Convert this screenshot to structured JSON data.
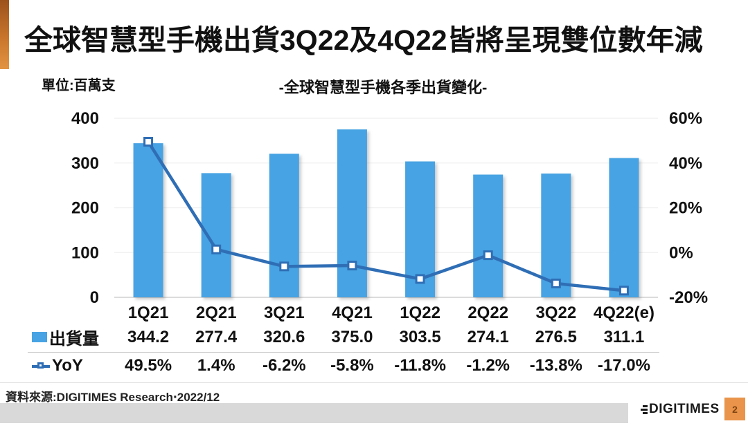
{
  "page": {
    "title": "全球智慧型手機出貨3Q22及4Q22皆將呈現雙位數年減",
    "page_number": "2"
  },
  "footer": {
    "source": "資料來源:DIGITIMES Research‧2022/12",
    "logo_text": "DIGITIMES"
  },
  "colors": {
    "bar": "#47a3e3",
    "line": "#2f6eb5",
    "accent_top": "#9c521c",
    "accent_bottom": "#e29440",
    "footer_bar": "#d9d9d9",
    "page_box_bg": "#e9944a",
    "page_box_text": "#7e4413",
    "gridline": "#efefef",
    "axis_line": "#cfcfcf"
  },
  "chart_data": {
    "type": "bar",
    "subtype": "bar+line combo, dual axis",
    "title": "-全球智慧型手機各季出貨變化-",
    "unit_label": "單位:百萬支",
    "categories": [
      "1Q21",
      "2Q21",
      "3Q21",
      "4Q21",
      "1Q22",
      "2Q22",
      "3Q22",
      "4Q22(e)"
    ],
    "series": [
      {
        "name": "出貨量",
        "type": "bar",
        "axis": "left",
        "color": "#47a3e3",
        "values": [
          344.2,
          277.4,
          320.6,
          375.0,
          303.5,
          274.1,
          276.5,
          311.1
        ]
      },
      {
        "name": "YoY",
        "type": "line",
        "axis": "right",
        "color": "#2f6eb5",
        "values": [
          49.5,
          1.4,
          -6.2,
          -5.8,
          -11.8,
          -1.2,
          -13.8,
          -17.0
        ]
      }
    ],
    "left_axis": {
      "min": 0,
      "max": 400,
      "ticks": [
        "400",
        "300",
        "200",
        "100",
        "0"
      ],
      "tick_values": [
        400,
        300,
        200,
        100,
        0
      ]
    },
    "right_axis": {
      "min": -20,
      "max": 60,
      "ticks": [
        "60%",
        "40%",
        "20%",
        "0%",
        "-20%"
      ],
      "tick_values": [
        60,
        40,
        20,
        0,
        -20
      ]
    },
    "grid": true,
    "legend_position": "table rows, bottom-left",
    "table": {
      "shipments_display": [
        "344.2",
        "277.4",
        "320.6",
        "375.0",
        "303.5",
        "274.1",
        "276.5",
        "311.1"
      ],
      "yoy_display": [
        "49.5%",
        "1.4%",
        "-6.2%",
        "-5.8%",
        "-11.8%",
        "-1.2%",
        "-13.8%",
        "-17.0%"
      ]
    }
  }
}
